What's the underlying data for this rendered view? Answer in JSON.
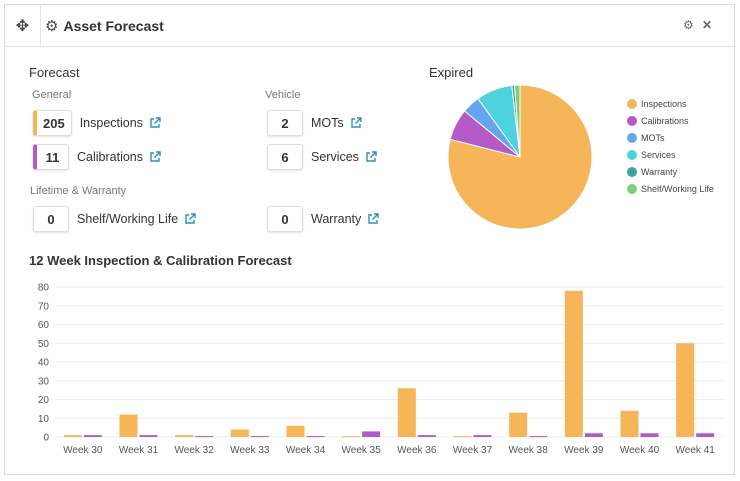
{
  "header": {
    "title": "Asset Forecast",
    "drag_icon": "move-icon",
    "app_icon": "cogs-icon",
    "settings_icon": "gear-icon",
    "close_icon": "close-icon"
  },
  "forecast": {
    "title": "Forecast",
    "general_label": "General",
    "vehicle_label": "Vehicle",
    "lifetime_label": "Lifetime & Warranty",
    "items": {
      "inspections": {
        "count": "205",
        "label": "Inspections",
        "color": "#f7b55a"
      },
      "calibrations": {
        "count": "11",
        "label": "Calibrations",
        "color": "#b45ac6"
      },
      "mots": {
        "count": "2",
        "label": "MOTs"
      },
      "services": {
        "count": "6",
        "label": "Services"
      },
      "shelf": {
        "count": "0",
        "label": "Shelf/Working Life"
      },
      "warranty": {
        "count": "0",
        "label": "Warranty"
      }
    }
  },
  "expired": {
    "title": "Expired",
    "legend": [
      {
        "label": "Inspections",
        "color": "#f7b55a",
        "value": 78
      },
      {
        "label": "Calibrations",
        "color": "#b45ac6",
        "value": 7
      },
      {
        "label": "MOTs",
        "color": "#63a6ee",
        "value": 4
      },
      {
        "label": "Services",
        "color": "#4fd2df",
        "value": 8
      },
      {
        "label": "Warranty",
        "color": "#3ca59a",
        "value": 0.6
      },
      {
        "label": "Shelf/Working Life",
        "color": "#7fce7c",
        "value": 1.2
      }
    ]
  },
  "chart_title": "12 Week Inspection & Calibration Forecast",
  "chart_data": {
    "type": "bar",
    "categories": [
      "Week 30",
      "Week 31",
      "Week 32",
      "Week 33",
      "Week 34",
      "Week 35",
      "Week 36",
      "Week 37",
      "Week 38",
      "Week 39",
      "Week 40",
      "Week 41"
    ],
    "series": [
      {
        "values": [
          1,
          12,
          1,
          4,
          6,
          0.5,
          26,
          0.5,
          13,
          78,
          14,
          50
        ],
        "color": "#f7b55a"
      },
      {
        "values": [
          1,
          1,
          0.5,
          0.5,
          0.5,
          3,
          1,
          1,
          0.5,
          2,
          2,
          2
        ],
        "color": "#b45ac6"
      }
    ],
    "yticks": [
      0,
      10,
      20,
      30,
      40,
      50,
      60,
      70,
      80
    ],
    "ylim": [
      0,
      80
    ],
    "grid": true
  }
}
